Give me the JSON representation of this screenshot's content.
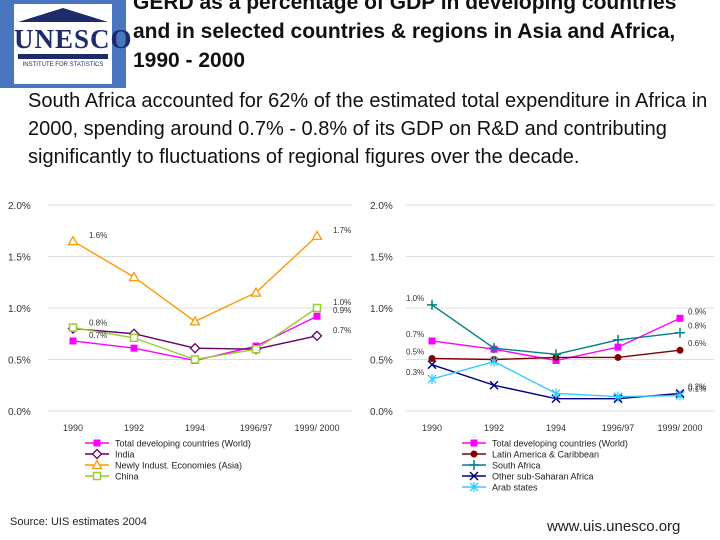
{
  "logo": {
    "word": "UNESCO",
    "subtitle": "INSTITUTE FOR STATISTICS"
  },
  "title": "GERD as a percentage of GDP in developing countries and in selected countries & regions in Asia and Africa, 1990 - 2000",
  "subtitle": "South Africa accounted for 62% of the estimated total expenditure in Africa in 2000, spending around 0.7% - 0.8% of its GDP on R&D and contributing significantly to fluctuations of regional figures over the decade.",
  "footer": {
    "source": "Source: UIS estimates 2004",
    "url": "www.uis.unesco.org"
  },
  "chart_data": [
    {
      "type": "line",
      "title": "",
      "categories": [
        "1990",
        "1992",
        "1994",
        "1996/97",
        "1999/ 2000"
      ],
      "yticks": [
        "0.0%",
        "0.5%",
        "1.0%",
        "1.5%",
        "2.0%"
      ],
      "ylim": [
        0,
        2
      ],
      "series": [
        {
          "name": "Total developing countries (World)",
          "color": "#ff00ff",
          "marker": "square",
          "values": [
            0.68,
            0.61,
            0.49,
            0.63,
            0.92
          ]
        },
        {
          "name": "India",
          "color": "#660066",
          "marker": "diamond",
          "values": [
            0.8,
            0.75,
            0.61,
            0.6,
            0.73
          ]
        },
        {
          "name": "Newly Indust. Economies (Asia)",
          "color": "#ff9900",
          "marker": "triangle",
          "values": [
            1.65,
            1.3,
            0.87,
            1.15,
            1.7
          ]
        },
        {
          "name": "China",
          "color": "#99cc33",
          "marker": "square-open",
          "values": [
            0.81,
            0.71,
            0.5,
            0.6,
            1.0
          ]
        }
      ],
      "annotations": [
        {
          "text": "1.6%",
          "series": 2,
          "point": 0
        },
        {
          "text": "1.7%",
          "series": 2,
          "point": 4
        },
        {
          "text": "0.8%",
          "series": 1,
          "point": 0
        },
        {
          "text": "0.7%",
          "series": 0,
          "point": 0
        },
        {
          "text": "1.0%",
          "series": 3,
          "point": 4
        },
        {
          "text": "0.9%",
          "series": 0,
          "point": 4
        },
        {
          "text": "0.7%",
          "series": 1,
          "point": 4
        }
      ]
    },
    {
      "type": "line",
      "title": "",
      "categories": [
        "1990",
        "1992",
        "1994",
        "1996/97",
        "1999/ 2000"
      ],
      "yticks": [
        "0.0%",
        "0.5%",
        "1.0%",
        "1.5%",
        "2.0%"
      ],
      "ylim": [
        0,
        2
      ],
      "series": [
        {
          "name": "Total developing countries (World)",
          "color": "#ff00ff",
          "marker": "square",
          "values": [
            0.68,
            0.6,
            0.49,
            0.62,
            0.9
          ]
        },
        {
          "name": "Latin America & Caribbean",
          "color": "#800000",
          "marker": "circle",
          "values": [
            0.51,
            0.5,
            0.52,
            0.52,
            0.59
          ]
        },
        {
          "name": "South Africa",
          "color": "#008080",
          "marker": "plus",
          "values": [
            1.03,
            0.61,
            0.55,
            0.69,
            0.76
          ]
        },
        {
          "name": "Other sub-Saharan Africa",
          "color": "#000080",
          "marker": "x",
          "values": [
            0.45,
            0.25,
            0.12,
            0.12,
            0.17
          ]
        },
        {
          "name": "Arab states",
          "color": "#33ccff",
          "marker": "star",
          "values": [
            0.31,
            0.48,
            0.17,
            0.14,
            0.15
          ]
        }
      ],
      "annotations": [
        {
          "text": "1.0%",
          "series": 2,
          "point": 0
        },
        {
          "text": "0.7%",
          "series": 0,
          "point": 0
        },
        {
          "text": "0.5%",
          "series": 1,
          "point": 0
        },
        {
          "text": "0.3%",
          "series": 4,
          "point": 0
        },
        {
          "text": "0.9%",
          "series": 0,
          "point": 4
        },
        {
          "text": "0.8%",
          "series": 2,
          "point": 4
        },
        {
          "text": "0.6%",
          "series": 1,
          "point": 4
        },
        {
          "text": "0.2%",
          "series": 3,
          "point": 4
        },
        {
          "text": "0.1%",
          "series": 4,
          "point": 4
        }
      ]
    }
  ]
}
